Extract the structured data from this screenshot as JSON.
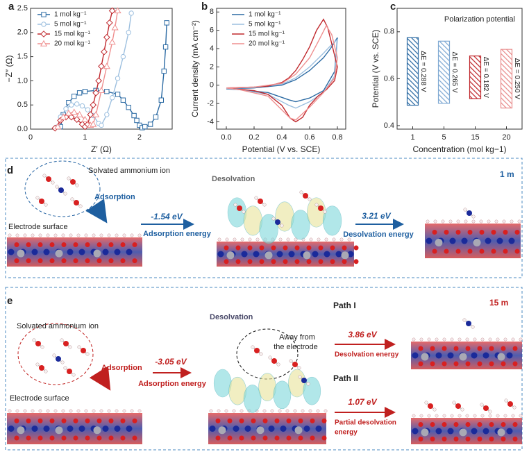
{
  "chart_data": [
    {
      "type": "line",
      "label": "a",
      "xlabel": "Z′ (Ω)",
      "ylabel": "−Z″ (Ω)",
      "markers": true,
      "legend": "upper left",
      "xlim": [
        0,
        2.6
      ],
      "ylim": [
        0,
        2.5
      ],
      "xticks": [
        0,
        1,
        2
      ],
      "yticks": [
        {
          "value": 0,
          "label": "0.0"
        },
        {
          "value": 0.5,
          "label": "0.5"
        },
        {
          "value": 1,
          "label": "1.0"
        },
        {
          "value": 1.5,
          "label": "1.5"
        },
        {
          "value": 2,
          "label": "2.0"
        },
        {
          "value": 2.5,
          "label": "2.5"
        }
      ],
      "series": [
        {
          "name": "1 mol kg⁻¹",
          "color": "#2b6aa3",
          "marker": "square",
          "x": [
            0.55,
            0.6,
            0.7,
            0.8,
            0.9,
            1.0,
            1.2,
            1.4,
            1.6,
            1.7,
            1.8,
            1.9,
            1.95,
            2.0,
            2.05,
            2.1,
            2.2,
            2.3,
            2.4,
            2.45,
            2.48,
            2.5
          ],
          "values": [
            0.05,
            0.3,
            0.55,
            0.68,
            0.75,
            0.78,
            0.8,
            0.78,
            0.72,
            0.6,
            0.45,
            0.28,
            0.18,
            0.08,
            0.03,
            0.05,
            0.1,
            0.25,
            0.6,
            1.2,
            1.7,
            2.2
          ]
        },
        {
          "name": "5 mol kg⁻¹",
          "color": "#9cbfdf",
          "marker": "circle",
          "x": [
            0.5,
            0.55,
            0.65,
            0.75,
            0.85,
            0.95,
            1.05,
            1.15,
            1.25,
            1.3,
            1.4,
            1.5,
            1.6,
            1.7,
            1.8,
            1.85
          ],
          "values": [
            0.05,
            0.25,
            0.42,
            0.5,
            0.52,
            0.48,
            0.4,
            0.28,
            0.12,
            0.08,
            0.3,
            0.65,
            1.05,
            1.5,
            2.0,
            2.4
          ]
        },
        {
          "name": "15 mol kg⁻¹",
          "color": "#c0282d",
          "marker": "diamond",
          "x": [
            0.45,
            0.55,
            0.65,
            0.75,
            0.85,
            0.95,
            1.0,
            1.05,
            1.1,
            1.15,
            1.2,
            1.25,
            1.3,
            1.35,
            1.4,
            1.45,
            1.5
          ],
          "values": [
            0.02,
            0.18,
            0.25,
            0.25,
            0.2,
            0.1,
            0.05,
            0.1,
            0.3,
            0.5,
            0.75,
            1.0,
            1.3,
            1.6,
            1.9,
            2.2,
            2.45
          ]
        },
        {
          "name": "20 mol kg⁻¹",
          "color": "#ef8f8f",
          "marker": "triangle",
          "x": [
            0.5,
            0.6,
            0.7,
            0.8,
            0.9,
            1.0,
            1.1,
            1.15,
            1.2,
            1.3,
            1.4,
            1.5,
            1.55,
            1.6
          ],
          "values": [
            0.05,
            0.25,
            0.33,
            0.35,
            0.3,
            0.2,
            0.08,
            0.1,
            0.3,
            0.8,
            1.3,
            1.8,
            2.1,
            2.45
          ]
        }
      ]
    },
    {
      "type": "line",
      "label": "b",
      "xlabel": "Potential (V vs. SCE)",
      "ylabel": "Current density (mA cm⁻²)",
      "markers": false,
      "legend": "upper left",
      "xlim": [
        -0.07,
        0.86
      ],
      "ylim": [
        -4.8,
        8.4
      ],
      "xticks": [
        {
          "value": 0,
          "label": "0.0"
        },
        0.2,
        0.4,
        0.6,
        0.8
      ],
      "yticks": [
        -4,
        -2,
        0,
        2,
        4,
        6,
        8
      ],
      "series": [
        {
          "name": "1 mol kg⁻¹",
          "color": "#2b6aa3",
          "x": [
            0,
            0.2,
            0.4,
            0.5,
            0.6,
            0.7,
            0.75,
            0.8,
            0.78,
            0.7,
            0.6,
            0.5,
            0.45,
            0.3,
            0.1,
            0
          ],
          "values": [
            -0.4,
            -0.3,
            0,
            0.6,
            1.6,
            3.0,
            4.0,
            5.2,
            1.5,
            -0.6,
            -1.4,
            -1.8,
            -1.6,
            -0.8,
            -0.5,
            -0.4
          ]
        },
        {
          "name": "5 mol kg⁻¹",
          "color": "#9cbfdf",
          "x": [
            0,
            0.2,
            0.4,
            0.5,
            0.6,
            0.7,
            0.75,
            0.8,
            0.78,
            0.7,
            0.6,
            0.5,
            0.45,
            0.3,
            0.1,
            0
          ],
          "values": [
            -0.35,
            -0.25,
            0.1,
            0.8,
            2.0,
            3.5,
            4.3,
            5.0,
            1.0,
            -0.8,
            -1.8,
            -2.5,
            -2.2,
            -1.0,
            -0.5,
            -0.35
          ]
        },
        {
          "name": "15 mol kg⁻¹",
          "color": "#c0282d",
          "x": [
            0,
            0.1,
            0.2,
            0.3,
            0.4,
            0.45,
            0.5,
            0.55,
            0.6,
            0.65,
            0.7,
            0.73,
            0.76,
            0.8,
            0.78,
            0.72,
            0.66,
            0.6,
            0.55,
            0.5,
            0.46,
            0.4,
            0.3,
            0.2,
            0.1,
            0
          ],
          "values": [
            -0.3,
            -0.25,
            -0.2,
            -0.1,
            0.3,
            0.8,
            1.6,
            2.8,
            4.2,
            6.0,
            7.2,
            6.3,
            4.5,
            2.0,
            0.5,
            -0.5,
            -1.2,
            -2.2,
            -3.5,
            -4.0,
            -3.6,
            -2.2,
            -1.0,
            -0.6,
            -0.45,
            -0.3
          ]
        },
        {
          "name": "20 mol kg⁻¹",
          "color": "#ef8f8f",
          "x": [
            0,
            0.2,
            0.4,
            0.5,
            0.6,
            0.67,
            0.72,
            0.76,
            0.8,
            0.78,
            0.7,
            0.6,
            0.5,
            0.46,
            0.3,
            0.1,
            0
          ],
          "values": [
            -0.3,
            -0.2,
            0.2,
            1.2,
            3.0,
            5.0,
            6.5,
            5.5,
            3.0,
            0.8,
            -0.8,
            -2.4,
            -3.8,
            -3.6,
            -1.2,
            -0.5,
            -0.3
          ]
        }
      ]
    },
    {
      "type": "range_bar",
      "label": "c",
      "title": "Polarization potential",
      "xlabel": "Concentration (mol kg−1)",
      "ylabel": "Potential (V vs. SCE)",
      "ylim": [
        0.385,
        0.9
      ],
      "yticks": [
        0.4,
        0.6,
        0.8
      ],
      "categories": [
        "1",
        "5",
        "15",
        "20"
      ],
      "low": [
        0.487,
        0.495,
        0.515,
        0.475
      ],
      "high": [
        0.775,
        0.76,
        0.697,
        0.725
      ],
      "colors": [
        "#2b6aa3",
        "#7fa9d3",
        "#c0282d",
        "#e88b8b"
      ],
      "annotations": [
        "ΔE = 0.288 V",
        "ΔE = 0.265 V",
        "ΔE = 0.182 V",
        "ΔE = 0.250 V"
      ]
    }
  ],
  "diagrams": {
    "d": {
      "label": "d",
      "solvated": "Solvated ammonium ion",
      "adsorption": "Adsorption",
      "surface": "Electrode surface",
      "desolvation": "Desolvation",
      "ads_energy": "-1.54 eV",
      "ads_energy_label": "Adsorption energy",
      "des_energy": "3.21 eV",
      "des_energy_label": "Desolvation energy",
      "concentration": "1 m"
    },
    "e": {
      "label": "e",
      "solvated": "Solvated ammonium ion",
      "adsorption": "Adsorption",
      "surface": "Electrode surface",
      "desolvation": "Desolvation",
      "away": [
        "Away from",
        "the electrode"
      ],
      "ads_energy": "-3.05 eV",
      "ads_energy_label": "Adsorption energy",
      "path1": "Path I",
      "path2": "Path II",
      "concentration": "15 m",
      "des_energy": "3.86 eV",
      "des_energy_label": "Desolvation energy",
      "partial_energy": "1.07 eV",
      "partial_label": [
        "Partial desolvation",
        "energy"
      ]
    }
  }
}
